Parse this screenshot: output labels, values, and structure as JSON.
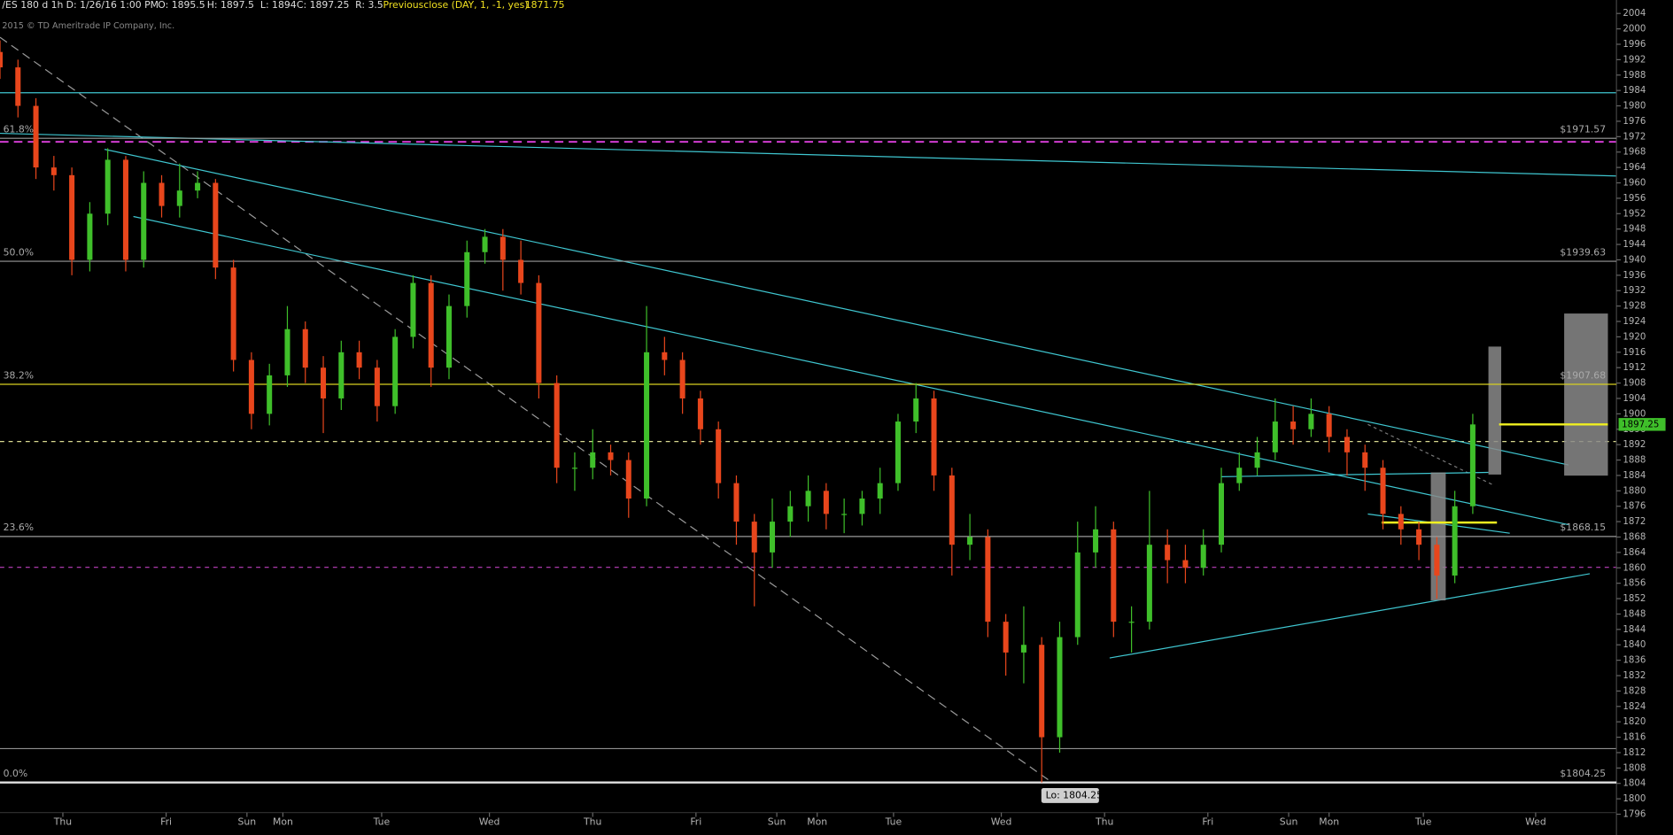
{
  "header": {
    "symbol": "/ES 180 d 1h",
    "date": "D: 1/26/16 1:00 PM",
    "open": "O: 1895.5",
    "high": "H: 1897.5",
    "low": "L: 1894",
    "close": "C: 1897.25",
    "range": "R: 3.5",
    "study": "Previousclose (DAY, 1, -1, yes)",
    "study_value": "1871.75",
    "copyright": "2015 © TD Ameritrade IP Company, Inc.",
    "low_callout": "Lo: 1804.25"
  },
  "chart_data": {
    "type": "candlestick",
    "up_color": "#3fbf2a",
    "down_color": "#e8461c",
    "xlim": [
      0,
      360
    ],
    "ylim": [
      1790.6,
      2007.5
    ],
    "xticks": [
      {
        "value": 14,
        "label": "Thu"
      },
      {
        "value": 37,
        "label": "Fri"
      },
      {
        "value": 55,
        "label": "Sun"
      },
      {
        "value": 63,
        "label": "Mon"
      },
      {
        "value": 85,
        "label": "Tue"
      },
      {
        "value": 109,
        "label": "Wed"
      },
      {
        "value": 132,
        "label": "Thu"
      },
      {
        "value": 155,
        "label": "Fri"
      },
      {
        "value": 173,
        "label": "Sun"
      },
      {
        "value": 182,
        "label": "Mon"
      },
      {
        "value": 199,
        "label": "Tue"
      },
      {
        "value": 223,
        "label": "Wed"
      },
      {
        "value": 246,
        "label": "Thu"
      },
      {
        "value": 269,
        "label": "Fri"
      },
      {
        "value": 287,
        "label": "Sun"
      },
      {
        "value": 296,
        "label": "Mon"
      },
      {
        "value": 317,
        "label": "Tue"
      },
      {
        "value": 342,
        "label": "Wed"
      }
    ],
    "yticks": [
      1796,
      1800,
      1804,
      1808,
      1812,
      1816,
      1820,
      1824,
      1828,
      1832,
      1836,
      1840,
      1844,
      1848,
      1852,
      1856,
      1860,
      1864,
      1868,
      1872,
      1876,
      1880,
      1884,
      1888,
      1892,
      1896,
      1900,
      1904,
      1908,
      1912,
      1916,
      1920,
      1924,
      1928,
      1932,
      1936,
      1940,
      1944,
      1948,
      1952,
      1956,
      1960,
      1964,
      1968,
      1972,
      1976,
      1980,
      1984,
      1988,
      1992,
      1996,
      2000,
      2004
    ],
    "levels": [
      {
        "label": "61.8%",
        "value": 1971.57,
        "price_label": "$1971.57"
      },
      {
        "label": "50.0%",
        "value": 1939.63,
        "price_label": "$1939.63"
      },
      {
        "label": "38.2%",
        "value": 1907.68,
        "price_label": "$1907.68"
      },
      {
        "label": "23.6%",
        "value": 1868.15,
        "price_label": "$1868.15"
      },
      {
        "label": "0.0%",
        "value": 1804.25,
        "price_label": "$1804.25"
      }
    ],
    "x": [
      0,
      4,
      8,
      12,
      16,
      20,
      24,
      28,
      32,
      36,
      40,
      44,
      48,
      52,
      56,
      60,
      64,
      68,
      72,
      76,
      80,
      84,
      88,
      92,
      96,
      100,
      104,
      108,
      112,
      116,
      120,
      124,
      128,
      132,
      136,
      140,
      144,
      148,
      152,
      156,
      160,
      164,
      168,
      172,
      176,
      180,
      184,
      188,
      192,
      196,
      200,
      204,
      208,
      212,
      216,
      220,
      224,
      228,
      232,
      236,
      240,
      244,
      248,
      252,
      256,
      260,
      264,
      268,
      272,
      276,
      280,
      284,
      288,
      292,
      296,
      300,
      304,
      308,
      312,
      316,
      320,
      324,
      328
    ],
    "open": [
      1994,
      1990,
      1980,
      1964,
      1962,
      1940,
      1952,
      1966,
      1940,
      1960,
      1954,
      1958,
      1960,
      1938,
      1914,
      1900,
      1910,
      1922,
      1912,
      1904,
      1916,
      1912,
      1902,
      1920,
      1934,
      1912,
      1928,
      1942,
      1946,
      1940,
      1934,
      1908,
      1886,
      1886,
      1890,
      1888,
      1878,
      1916,
      1914,
      1904,
      1896,
      1882,
      1872,
      1864,
      1872,
      1876,
      1880,
      1874,
      1874,
      1878,
      1882,
      1898,
      1904,
      1884,
      1866,
      1868,
      1846,
      1838,
      1840,
      1816,
      1842,
      1864,
      1870,
      1846,
      1846,
      1866,
      1862,
      1860,
      1866,
      1882,
      1886,
      1890,
      1898,
      1896,
      1900,
      1894,
      1890,
      1886,
      1874,
      1870,
      1866,
      1858,
      1876
    ],
    "high": [
      1997,
      1992,
      1982,
      1967,
      1964,
      1955,
      1969,
      1967,
      1963,
      1962,
      1965,
      1963,
      1961,
      1940,
      1916,
      1913,
      1928,
      1924,
      1915,
      1919,
      1919,
      1914,
      1922,
      1936,
      1936,
      1931,
      1945,
      1948,
      1948,
      1945,
      1936,
      1910,
      1890,
      1896,
      1892,
      1890,
      1928,
      1920,
      1916,
      1906,
      1898,
      1884,
      1874,
      1878,
      1880,
      1884,
      1882,
      1878,
      1880,
      1886,
      1900,
      1908,
      1906,
      1886,
      1874,
      1870,
      1848,
      1850,
      1842,
      1846,
      1872,
      1876,
      1872,
      1850,
      1880,
      1870,
      1866,
      1870,
      1886,
      1890,
      1894,
      1904,
      1902,
      1904,
      1902,
      1896,
      1892,
      1888,
      1876,
      1872,
      1868,
      1880,
      1900
    ],
    "low": [
      1987,
      1977,
      1961,
      1958,
      1936,
      1937,
      1949,
      1937,
      1938,
      1951,
      1951,
      1956,
      1935,
      1911,
      1896,
      1897,
      1907,
      1908,
      1895,
      1901,
      1909,
      1898,
      1900,
      1917,
      1907,
      1909,
      1925,
      1939,
      1932,
      1931,
      1904,
      1882,
      1880,
      1883,
      1884,
      1873,
      1876,
      1910,
      1900,
      1892,
      1878,
      1866,
      1850,
      1860,
      1868,
      1872,
      1870,
      1869,
      1871,
      1874,
      1880,
      1895,
      1880,
      1858,
      1862,
      1842,
      1832,
      1830,
      1804.25,
      1812,
      1840,
      1860,
      1842,
      1838,
      1844,
      1856,
      1856,
      1858,
      1864,
      1880,
      1884,
      1888,
      1892,
      1894,
      1890,
      1884,
      1880,
      1870,
      1866,
      1862,
      1852,
      1856,
      1874
    ],
    "close": [
      1990,
      1980,
      1964,
      1962,
      1940,
      1952,
      1966,
      1940,
      1960,
      1954,
      1958,
      1960,
      1938,
      1914,
      1900,
      1910,
      1922,
      1912,
      1904,
      1916,
      1912,
      1902,
      1920,
      1934,
      1912,
      1928,
      1942,
      1946,
      1940,
      1934,
      1908,
      1886,
      1886,
      1890,
      1888,
      1878,
      1916,
      1914,
      1904,
      1896,
      1882,
      1872,
      1864,
      1872,
      1876,
      1880,
      1874,
      1874,
      1878,
      1882,
      1898,
      1904,
      1884,
      1866,
      1868,
      1846,
      1838,
      1840,
      1816,
      1842,
      1864,
      1870,
      1846,
      1846,
      1866,
      1862,
      1860,
      1866,
      1882,
      1886,
      1890,
      1898,
      1896,
      1900,
      1894,
      1890,
      1886,
      1874,
      1870,
      1866,
      1858,
      1876,
      1897.25
    ]
  }
}
